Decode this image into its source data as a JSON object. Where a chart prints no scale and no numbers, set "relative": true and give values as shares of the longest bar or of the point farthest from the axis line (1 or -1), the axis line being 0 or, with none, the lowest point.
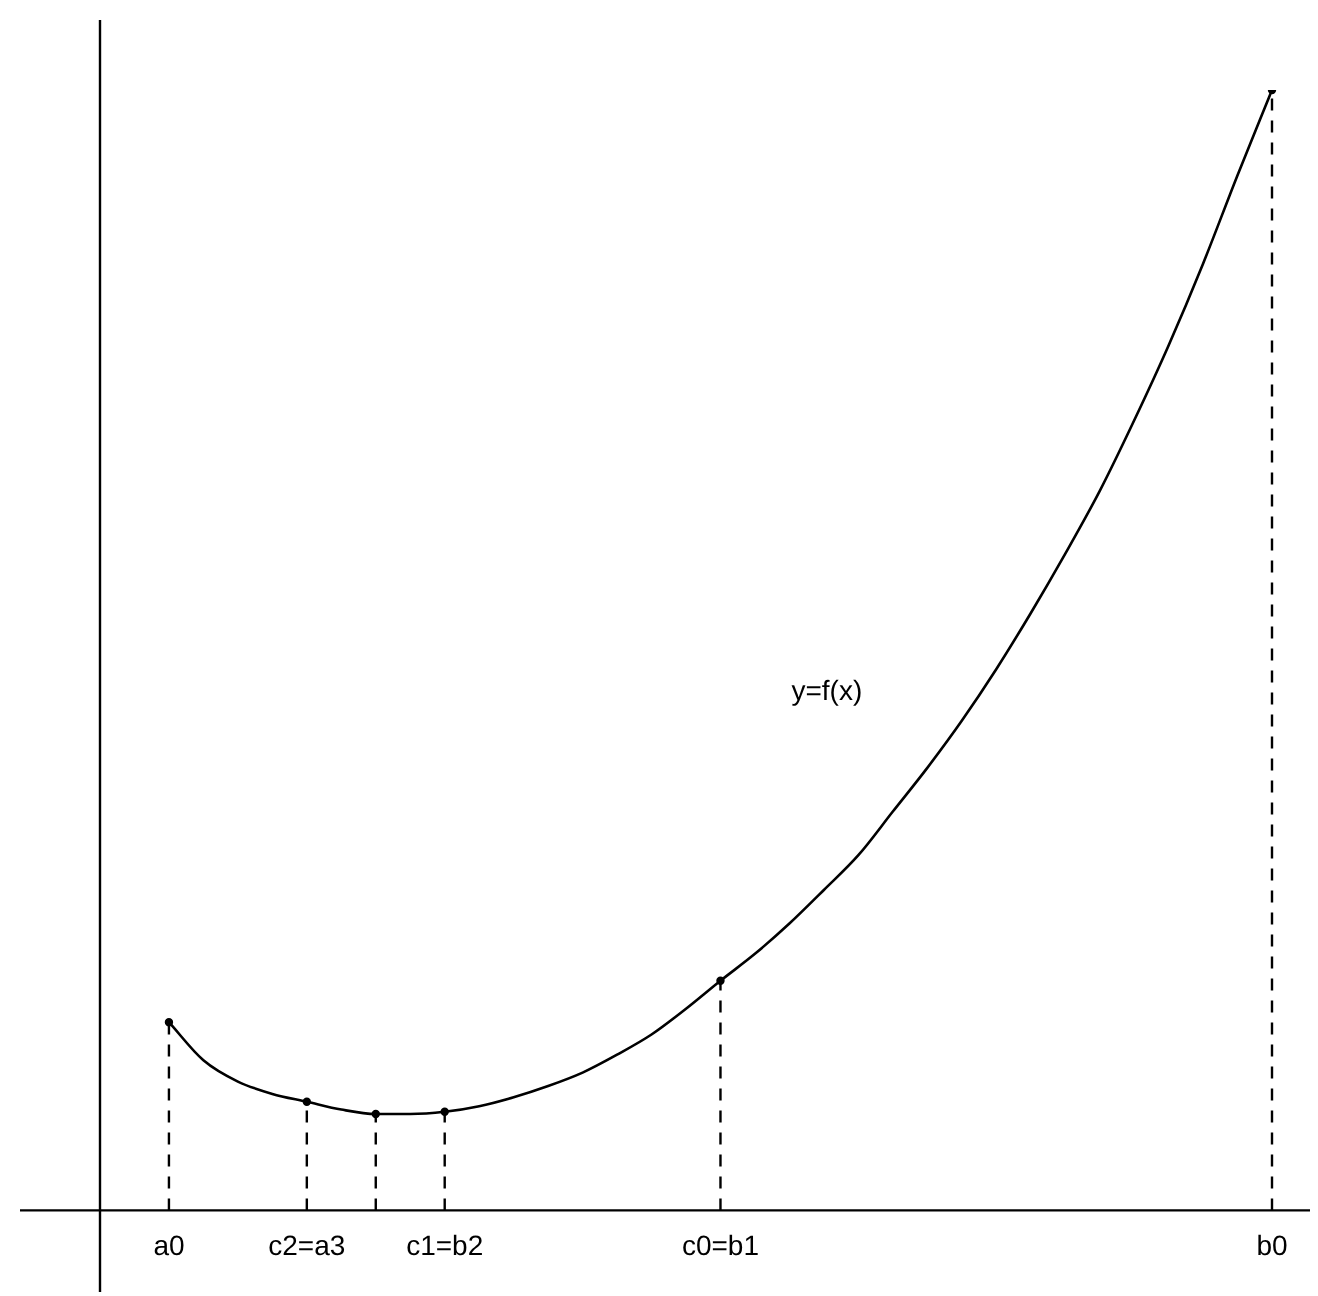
{
  "chart_data": {
    "type": "line",
    "relative": true,
    "tick_labels": "x",
    "grid": false,
    "legend": false,
    "categories": [
      null,
      null,
      "a0",
      null,
      null,
      null,
      "c2=a3",
      null,
      null,
      null,
      "c1=b2",
      null,
      null,
      null,
      null,
      null,
      null,
      null,
      "c0=b1",
      null,
      null,
      null,
      null,
      null,
      null,
      null,
      null,
      null,
      null,
      null,
      null,
      null,
      null,
      null,
      "b0"
    ],
    "annotations": [
      "y=f(x)"
    ],
    "series": [
      {
        "color": "#000000",
        "marker": "none",
        "line_style": "solid",
        "values": [
          null,
          null,
          0.168,
          0.134,
          0.115,
          0.104,
          0.097,
          0.09,
          0.086,
          0.086,
          0.088,
          0.093,
          0.101,
          0.111,
          0.123,
          0.139,
          0.157,
          0.18,
          0.205,
          0.229,
          0.256,
          0.286,
          0.317,
          0.356,
          0.395,
          0.437,
          0.483,
          0.533,
          0.586,
          0.642,
          0.705,
          0.772,
          0.845,
          0.924,
          1
        ]
      },
      {
        "type": "lollipop",
        "color": "#000000",
        "marker": "circle",
        "line_style": "dashed",
        "values": [
          null,
          null,
          0.168,
          null,
          null,
          null,
          0.097,
          null,
          0.086,
          null,
          0.088,
          null,
          null,
          null,
          null,
          null,
          null,
          null,
          0.205,
          null,
          null,
          null,
          null,
          null,
          null,
          null,
          null,
          null,
          null,
          null,
          null,
          null,
          null,
          null,
          1
        ]
      }
    ]
  }
}
